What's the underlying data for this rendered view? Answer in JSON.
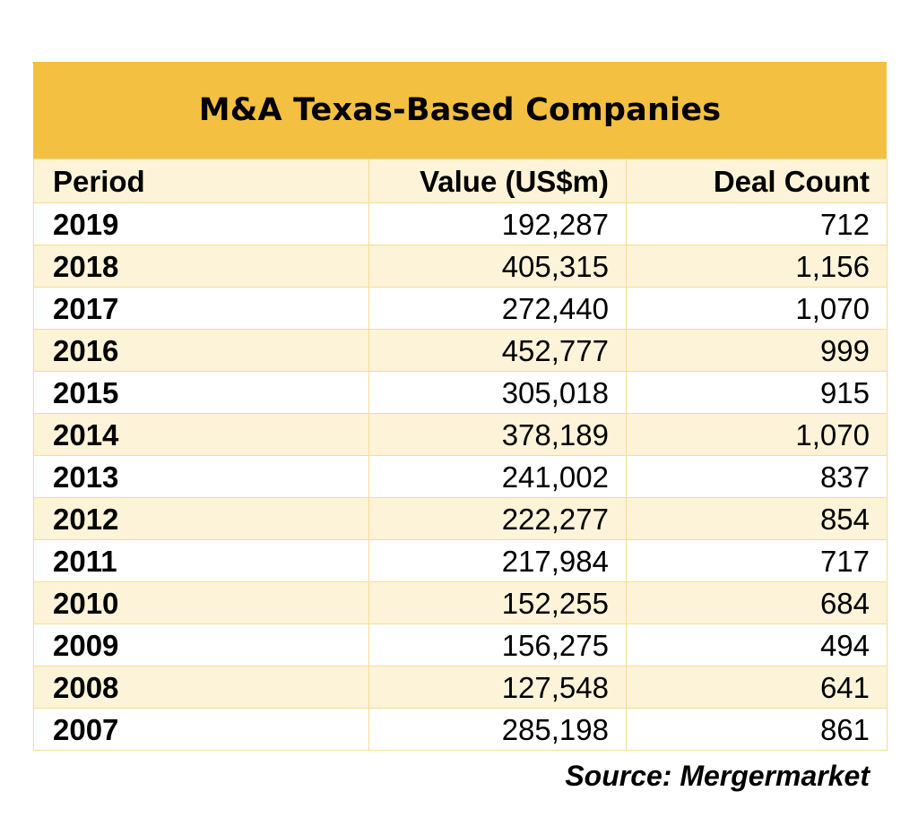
{
  "chart_data": {
    "type": "table",
    "title": "M&A Texas-Based Companies",
    "columns": [
      "Period",
      "Value (US$m)",
      "Deal Count"
    ],
    "rows": [
      [
        "2019",
        "192,287",
        "712"
      ],
      [
        "2018",
        "405,315",
        "1,156"
      ],
      [
        "2017",
        "272,440",
        "1,070"
      ],
      [
        "2016",
        "452,777",
        "999"
      ],
      [
        "2015",
        "305,018",
        "915"
      ],
      [
        "2014",
        "378,189",
        "1,070"
      ],
      [
        "2013",
        "241,002",
        "837"
      ],
      [
        "2012",
        "222,277",
        "854"
      ],
      [
        "2011",
        "217,984",
        "717"
      ],
      [
        "2010",
        "152,255",
        "684"
      ],
      [
        "2009",
        "156,275",
        "494"
      ],
      [
        "2008",
        "127,548",
        "641"
      ],
      [
        "2007",
        "285,198",
        "861"
      ]
    ],
    "source": "Source: Mergermarket"
  },
  "colors": {
    "title_background": "#f4c042",
    "band_background": "#fdf3d8",
    "grid_line": "#f6dc93"
  }
}
